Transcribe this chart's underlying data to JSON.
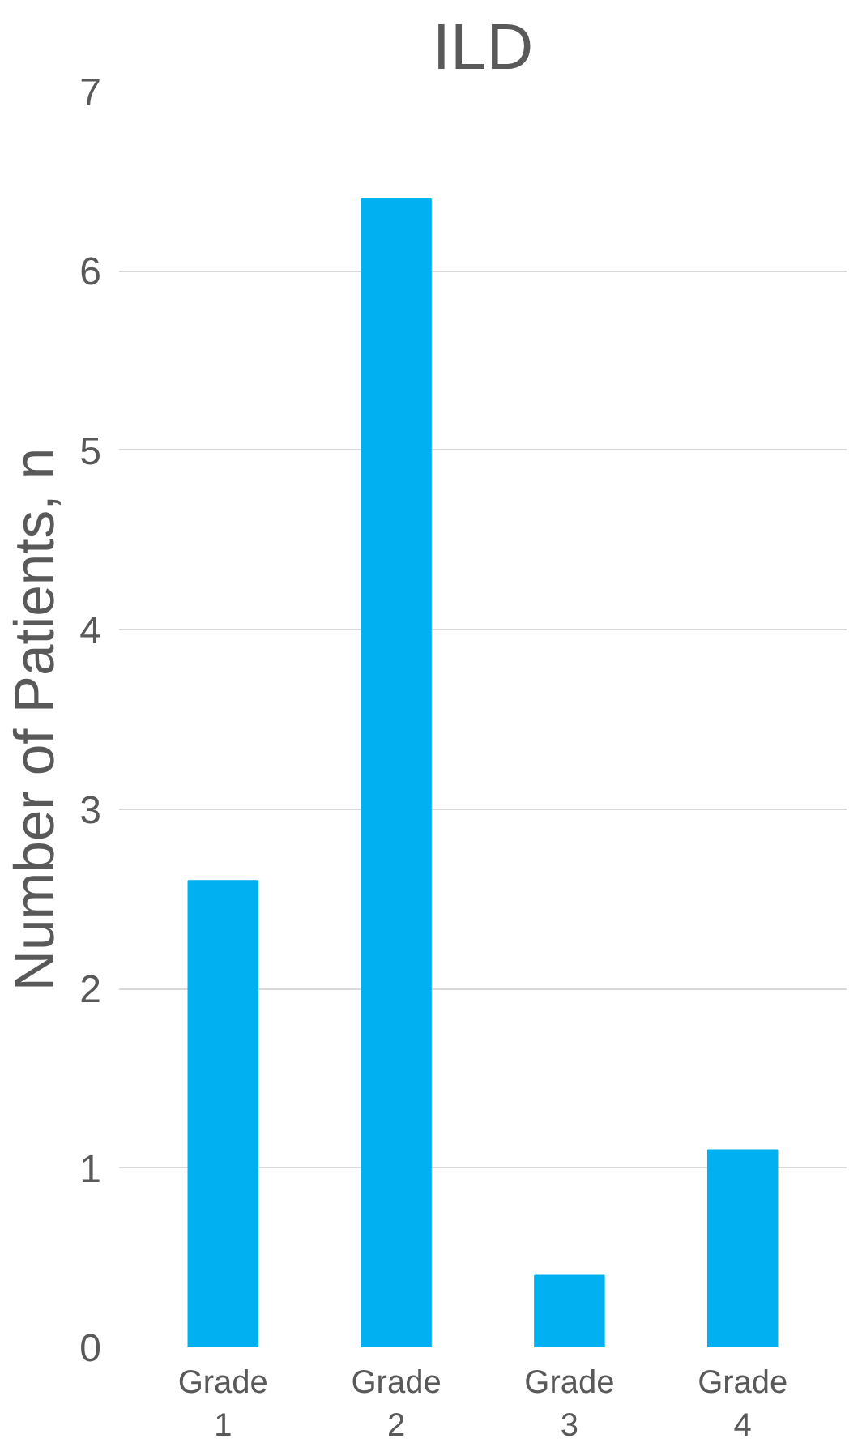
{
  "chart_data": {
    "type": "bar",
    "title": "ILD",
    "ylabel": "Number of Patients, n",
    "categories": [
      "Grade 1",
      "Grade 2",
      "Grade 3",
      "Grade 4"
    ],
    "values": [
      2.6,
      6.4,
      0.4,
      1.1
    ],
    "color": "#00b0f0",
    "ylim": [
      0,
      7
    ],
    "yticks": [
      0,
      1,
      2,
      3,
      4,
      5,
      6,
      7
    ],
    "grid": "y"
  }
}
